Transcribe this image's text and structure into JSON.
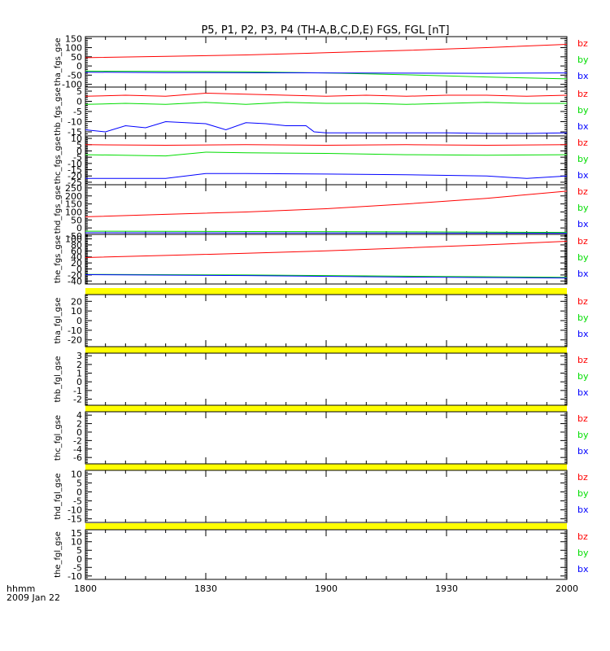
{
  "title": "P5, P1, P2, P3, P4 (TH-A,B,C,D,E) FGS, FGL [nT]",
  "colors": {
    "bz": "#ff0000",
    "by": "#00dd00",
    "bx": "#0000ff",
    "gap": "#ffff00",
    "axis": "#000000"
  },
  "footer": {
    "label1": "hhmm",
    "label2": "2009 Jan 22"
  },
  "chart_data": {
    "type": "line",
    "x_ticks": [
      {
        "v": 0,
        "label": "1800"
      },
      {
        "v": 30,
        "label": "1830"
      },
      {
        "v": 60,
        "label": "1900"
      },
      {
        "v": 90,
        "label": "1930"
      },
      {
        "v": 120,
        "label": "2000"
      }
    ],
    "xlim": [
      0,
      120
    ],
    "legend": [
      "bz",
      "by",
      "bx"
    ],
    "panels": [
      {
        "ylabel": "tha_fgs_gse",
        "ylim": [
          -115,
          160
        ],
        "yticks": [
          "150",
          "100",
          "50",
          "0",
          "-50",
          "-100"
        ],
        "yvals": [
          150,
          100,
          50,
          0,
          -50,
          -100
        ],
        "series": [
          {
            "name": "bz",
            "x": [
              0,
              20,
              40,
              60,
              80,
              100,
              120
            ],
            "y": [
              45,
              52,
              60,
              72,
              85,
              100,
              118
            ]
          },
          {
            "name": "by",
            "x": [
              0,
              20,
              40,
              60,
              80,
              100,
              120
            ],
            "y": [
              -28,
              -30,
              -32,
              -38,
              -48,
              -60,
              -70
            ]
          },
          {
            "name": "bx",
            "x": [
              0,
              20,
              40,
              60,
              80,
              100,
              120
            ],
            "y": [
              -34,
              -36,
              -37,
              -38,
              -39,
              -40,
              -38
            ]
          }
        ]
      },
      {
        "ylabel": "thb_fgs_gse",
        "ylim": [
          -17,
          7
        ],
        "yticks": [
          "5",
          "0",
          "-5",
          "-10",
          "-15"
        ],
        "yvals": [
          5,
          0,
          -5,
          -10,
          -15
        ],
        "series": [
          {
            "name": "bz",
            "x": [
              0,
              10,
              20,
              30,
              40,
              50,
              60,
              70,
              80,
              90,
              100,
              110,
              120
            ],
            "y": [
              2.5,
              3,
              2.5,
              4,
              3.5,
              3,
              2.5,
              3,
              2.5,
              3,
              3,
              2.5,
              3
            ]
          },
          {
            "name": "by",
            "x": [
              0,
              10,
              20,
              30,
              40,
              50,
              60,
              70,
              80,
              90,
              100,
              110,
              120
            ],
            "y": [
              -1.5,
              -1,
              -1.5,
              -0.5,
              -1.5,
              -0.5,
              -1,
              -1,
              -1.5,
              -1,
              -0.5,
              -1,
              -1
            ]
          },
          {
            "name": "bx",
            "x": [
              0,
              5,
              10,
              15,
              20,
              25,
              30,
              35,
              40,
              45,
              50,
              55,
              57,
              60,
              70,
              80,
              90,
              100,
              110,
              120
            ],
            "y": [
              -14,
              -15,
              -12,
              -13,
              -10,
              -10.5,
              -11,
              -14,
              -10.5,
              -11,
              -12,
              -12,
              -15,
              -15.5,
              -15.5,
              -15.5,
              -15.5,
              -15.8,
              -15.8,
              -15.5
            ]
          }
        ]
      },
      {
        "ylabel": "thc_fgs_gse",
        "ylim": [
          -27,
          12
        ],
        "yticks": [
          "10",
          "5",
          "0",
          "-5",
          "-10",
          "-15",
          "-20",
          "-25"
        ],
        "yvals": [
          10,
          5,
          0,
          -5,
          -10,
          -15,
          -20,
          -25
        ],
        "series": [
          {
            "name": "bz",
            "x": [
              0,
              20,
              40,
              60,
              80,
              100,
              120
            ],
            "y": [
              5,
              4.5,
              5,
              4.5,
              5,
              4.5,
              5
            ]
          },
          {
            "name": "by",
            "x": [
              0,
              20,
              30,
              40,
              60,
              80,
              100,
              120
            ],
            "y": [
              -3,
              -4,
              -1,
              -1.5,
              -2,
              -3,
              -3.5,
              -3
            ]
          },
          {
            "name": "bx",
            "x": [
              0,
              20,
              30,
              40,
              60,
              80,
              100,
              110,
              120
            ],
            "y": [
              -22,
              -22,
              -18,
              -18,
              -18.5,
              -19,
              -20,
              -22,
              -20
            ]
          }
        ]
      },
      {
        "ylabel": "thd_fgs_gse",
        "ylim": [
          -40,
          270
        ],
        "yticks": [
          "250",
          "200",
          "150",
          "100",
          "50",
          "0",
          "-50"
        ],
        "yvals": [
          250,
          200,
          150,
          100,
          50,
          0,
          -50
        ],
        "series": [
          {
            "name": "bz",
            "x": [
              0,
              20,
              40,
              60,
              80,
              100,
              120
            ],
            "y": [
              70,
              85,
              100,
              120,
              150,
              185,
              230
            ]
          },
          {
            "name": "by",
            "x": [
              0,
              40,
              80,
              120
            ],
            "y": [
              -20,
              -22,
              -24,
              -28
            ]
          },
          {
            "name": "bx",
            "x": [
              0,
              40,
              80,
              120
            ],
            "y": [
              -30,
              -31,
              -32,
              -33
            ]
          }
        ]
      },
      {
        "ylabel": "the_fgs_gse",
        "ylim": [
          -50,
          115
        ],
        "yticks": [
          "100",
          "80",
          "60",
          "40",
          "20",
          "0",
          "-20",
          "-40"
        ],
        "yvals": [
          100,
          80,
          60,
          40,
          20,
          0,
          -20,
          -40
        ],
        "series": [
          {
            "name": "bz",
            "x": [
              0,
              20,
              40,
              60,
              80,
              100,
              120
            ],
            "y": [
              38,
              45,
              52,
              60,
              70,
              80,
              92
            ]
          },
          {
            "name": "by",
            "x": [
              0,
              40,
              80,
              120
            ],
            "y": [
              -18,
              -20,
              -24,
              -28
            ]
          },
          {
            "name": "bx",
            "x": [
              0,
              40,
              80,
              120
            ],
            "y": [
              -19,
              -22,
              -27,
              -30
            ]
          }
        ]
      },
      {
        "ylabel": "tha_fgl_gse",
        "ylim": [
          -27,
          27
        ],
        "yticks": [
          "20",
          "10",
          "0",
          "-10",
          "-20"
        ],
        "yvals": [
          20,
          10,
          0,
          -10,
          -20
        ],
        "series": [],
        "gap": true
      },
      {
        "ylabel": "thb_fgl_gse",
        "ylim": [
          -2.7,
          3.3
        ],
        "yticks": [
          "3",
          "2",
          "1",
          "0",
          "-1",
          "-2"
        ],
        "yvals": [
          3,
          2,
          1,
          0,
          -1,
          -2
        ],
        "series": [],
        "gap": true
      },
      {
        "ylabel": "thc_fgl_gse",
        "ylim": [
          -7.5,
          4.8
        ],
        "yticks": [
          "4",
          "2",
          "0",
          "-2",
          "-4",
          "-6"
        ],
        "yvals": [
          4,
          2,
          0,
          -2,
          -4,
          -6
        ],
        "series": [],
        "gap": true
      },
      {
        "ylabel": "thd_fgl_gse",
        "ylim": [
          -17,
          12
        ],
        "yticks": [
          "10",
          "5",
          "0",
          "-5",
          "-10",
          "-15"
        ],
        "yvals": [
          10,
          5,
          0,
          -5,
          -10,
          -15
        ],
        "series": [],
        "gap": true
      },
      {
        "ylabel": "the_fgl_gse",
        "ylim": [
          -12,
          17
        ],
        "yticks": [
          "15",
          "10",
          "5",
          "0",
          "-5",
          "-10"
        ],
        "yvals": [
          15,
          10,
          5,
          0,
          -5,
          -10
        ],
        "series": [],
        "gap": true
      }
    ]
  }
}
